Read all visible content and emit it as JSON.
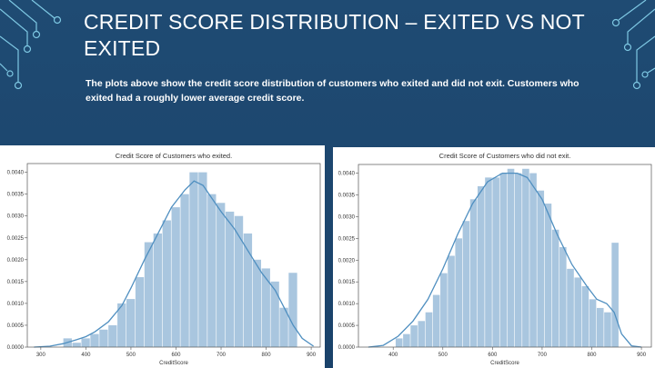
{
  "slide": {
    "title": "CREDIT SCORE DISTRIBUTION – EXITED VS NOT EXITED",
    "description": "The plots above show the credit score distribution of customers who exited and did not exit. Customers who exited had a roughly lower average credit score."
  },
  "colors": {
    "background": "#1d4870",
    "bar": "#a9c6df",
    "line": "#4f8fc0",
    "accent": "#7ec8e3"
  },
  "chart_data": [
    {
      "type": "bar",
      "title": "Credit Score of Customers who exited.",
      "xlabel": "CreditScore",
      "ylabel": "",
      "xlim": [
        270,
        920
      ],
      "ylim": [
        0,
        0.0042
      ],
      "xticks": [
        "300",
        "400",
        "500",
        "600",
        "700",
        "800",
        "900"
      ],
      "yticks": [
        "0.0000",
        "0.0005",
        "0.0010",
        "0.0015",
        "0.0020",
        "0.0025",
        "0.0030",
        "0.0035",
        "0.0040"
      ],
      "bin_width": 20,
      "bins": [
        [
          350,
          0.0002
        ],
        [
          370,
          0.0001
        ],
        [
          390,
          0.0002
        ],
        [
          410,
          0.0003
        ],
        [
          430,
          0.0004
        ],
        [
          450,
          0.0005
        ],
        [
          470,
          0.001
        ],
        [
          490,
          0.0011
        ],
        [
          510,
          0.0016
        ],
        [
          530,
          0.0024
        ],
        [
          550,
          0.0026
        ],
        [
          570,
          0.0029
        ],
        [
          590,
          0.0032
        ],
        [
          610,
          0.0035
        ],
        [
          630,
          0.004
        ],
        [
          650,
          0.004
        ],
        [
          670,
          0.0035
        ],
        [
          690,
          0.0033
        ],
        [
          710,
          0.0031
        ],
        [
          730,
          0.003
        ],
        [
          750,
          0.0026
        ],
        [
          770,
          0.002
        ],
        [
          790,
          0.0018
        ],
        [
          810,
          0.0015
        ],
        [
          830,
          0.0009
        ],
        [
          850,
          0.0017
        ]
      ],
      "kde": [
        [
          285,
          0.0
        ],
        [
          320,
          2e-05
        ],
        [
          350,
          8e-05
        ],
        [
          380,
          0.00017
        ],
        [
          400,
          0.00024
        ],
        [
          420,
          0.00035
        ],
        [
          450,
          0.00058
        ],
        [
          480,
          0.00095
        ],
        [
          500,
          0.00135
        ],
        [
          530,
          0.002
        ],
        [
          560,
          0.0026
        ],
        [
          590,
          0.0032
        ],
        [
          620,
          0.0036
        ],
        [
          640,
          0.0038
        ],
        [
          660,
          0.0037
        ],
        [
          680,
          0.0034
        ],
        [
          700,
          0.0031
        ],
        [
          730,
          0.0027
        ],
        [
          760,
          0.0022
        ],
        [
          790,
          0.0017
        ],
        [
          820,
          0.0013
        ],
        [
          840,
          0.0009
        ],
        [
          860,
          0.0005
        ],
        [
          880,
          0.0002
        ],
        [
          905,
          2e-05
        ]
      ]
    },
    {
      "type": "bar",
      "title": "Credit Score of Customers who did not exit.",
      "xlabel": "CreditScore",
      "ylabel": "",
      "xlim": [
        330,
        920
      ],
      "ylim": [
        0,
        0.0042
      ],
      "xticks": [
        "400",
        "500",
        "600",
        "700",
        "800",
        "900"
      ],
      "yticks": [
        "0.0000",
        "0.0005",
        "0.0010",
        "0.0015",
        "0.0020",
        "0.0025",
        "0.0030",
        "0.0035",
        "0.0040"
      ],
      "bin_width": 15,
      "bins": [
        [
          405,
          0.0002
        ],
        [
          420,
          0.0003
        ],
        [
          435,
          0.0005
        ],
        [
          450,
          0.0006
        ],
        [
          465,
          0.0008
        ],
        [
          480,
          0.0012
        ],
        [
          495,
          0.0017
        ],
        [
          510,
          0.0021
        ],
        [
          525,
          0.0025
        ],
        [
          540,
          0.0029
        ],
        [
          555,
          0.0034
        ],
        [
          570,
          0.0037
        ],
        [
          585,
          0.0039
        ],
        [
          600,
          0.0039
        ],
        [
          615,
          0.004
        ],
        [
          630,
          0.0041
        ],
        [
          645,
          0.004
        ],
        [
          660,
          0.0041
        ],
        [
          675,
          0.004
        ],
        [
          690,
          0.0036
        ],
        [
          705,
          0.0033
        ],
        [
          720,
          0.0027
        ],
        [
          735,
          0.0023
        ],
        [
          750,
          0.0018
        ],
        [
          765,
          0.0016
        ],
        [
          780,
          0.0014
        ],
        [
          795,
          0.0011
        ],
        [
          810,
          0.0009
        ],
        [
          825,
          0.0008
        ],
        [
          840,
          0.0024
        ]
      ],
      "kde": [
        [
          350,
          0.0
        ],
        [
          380,
          4e-05
        ],
        [
          410,
          0.00025
        ],
        [
          440,
          0.0006
        ],
        [
          470,
          0.0011
        ],
        [
          500,
          0.0018
        ],
        [
          530,
          0.0026
        ],
        [
          560,
          0.0033
        ],
        [
          590,
          0.0038
        ],
        [
          620,
          0.004
        ],
        [
          650,
          0.004
        ],
        [
          670,
          0.0039
        ],
        [
          700,
          0.0034
        ],
        [
          730,
          0.0026
        ],
        [
          760,
          0.0019
        ],
        [
          790,
          0.0014
        ],
        [
          810,
          0.0011
        ],
        [
          830,
          0.001
        ],
        [
          845,
          0.0008
        ],
        [
          860,
          0.0003
        ],
        [
          880,
          3e-05
        ],
        [
          900,
          0.0
        ]
      ]
    }
  ]
}
